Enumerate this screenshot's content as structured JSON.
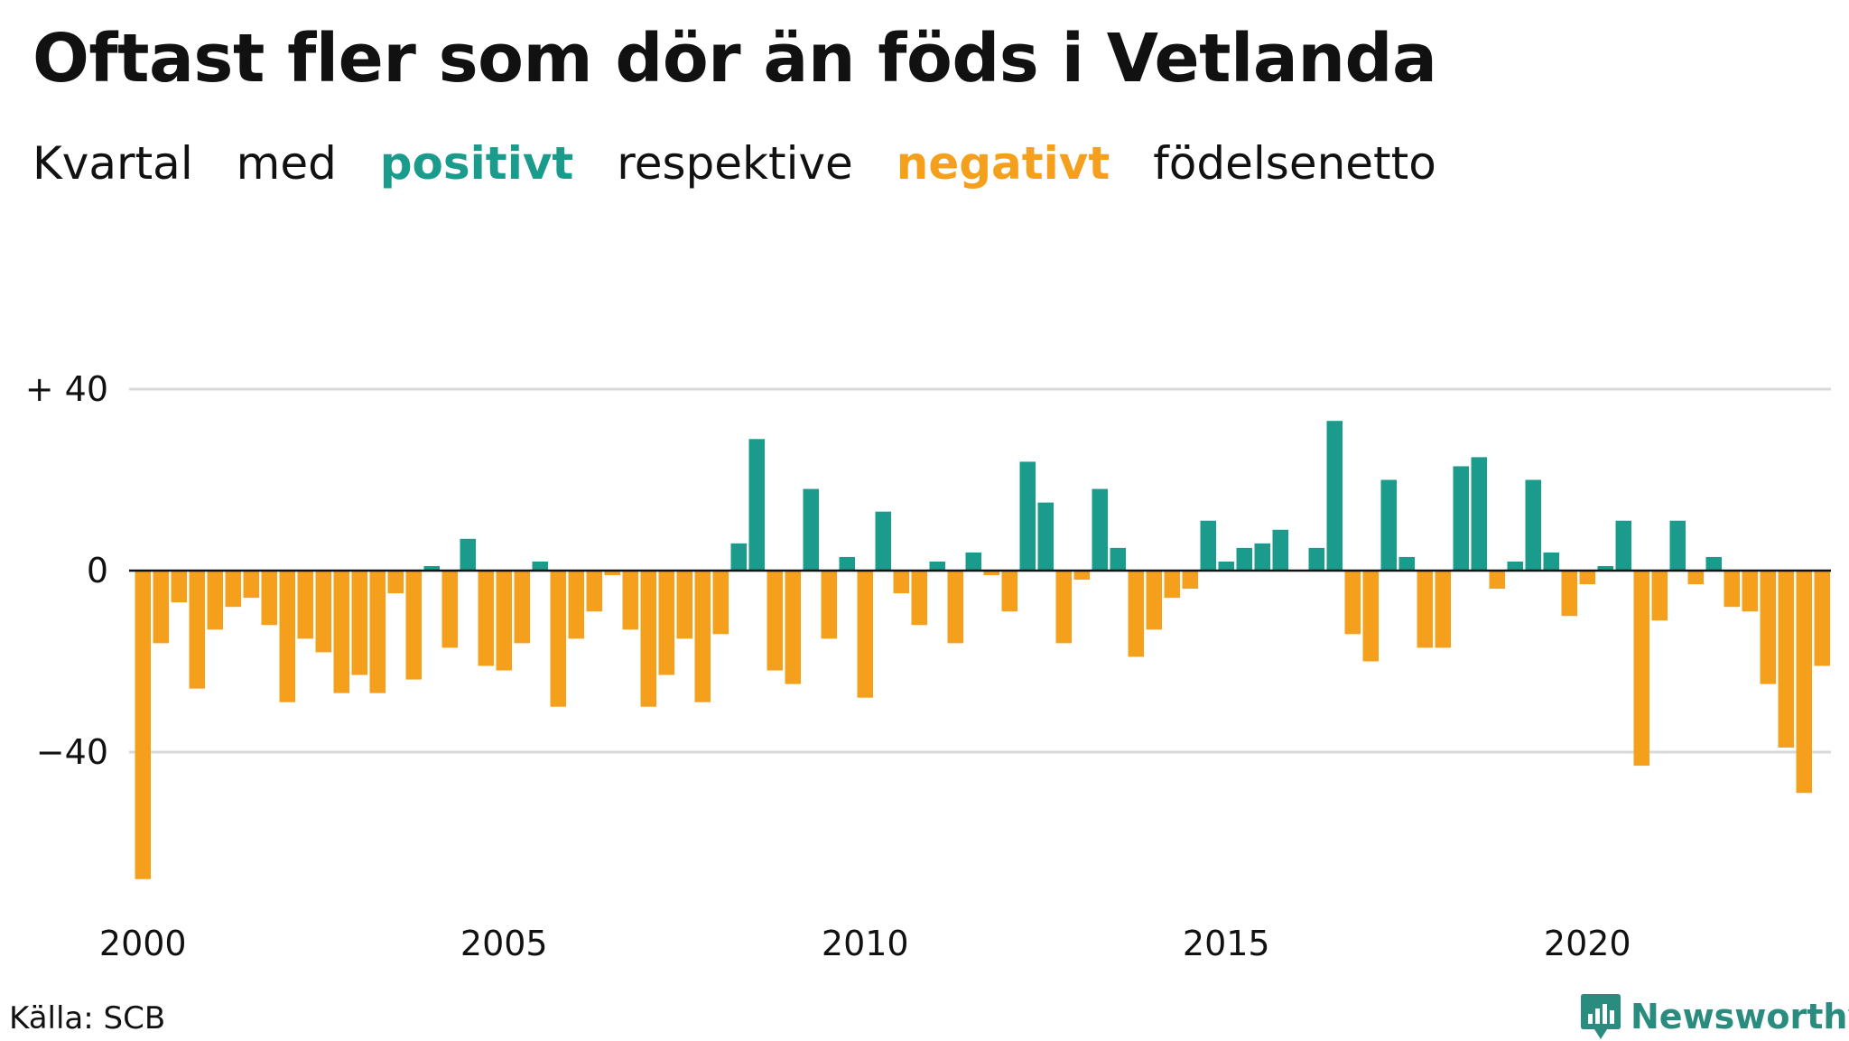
{
  "title": "Oftast fler som dör än föds i Vetlanda",
  "subtitle": {
    "word1": "Kvartal",
    "word2": "med",
    "positive_word": "positivt",
    "word3": "respektive",
    "negative_word": "negativt",
    "word4": "födelsenetto"
  },
  "colors": {
    "positive": "#1a9b8c",
    "negative": "#f5a01d",
    "grid": "#d9d9d9",
    "axis": "#111111",
    "logo_icon": "#2a8c7e",
    "logo_text": "#2a8c7e"
  },
  "source": "Källa: SCB",
  "logo": {
    "text": "Newsworthy",
    "icon": "bar-chart-logo-icon"
  },
  "chart_data": {
    "type": "bar",
    "title": "Oftast fler som dör än föds i Vetlanda",
    "xlabel": "",
    "ylabel": "",
    "ylim": [
      -72,
      50
    ],
    "yticks": [
      {
        "value": 40,
        "label": "+ 40"
      },
      {
        "value": 0,
        "label": "0"
      },
      {
        "value": -40,
        "label": "−40"
      }
    ],
    "xticks": [
      "2000",
      "2005",
      "2010",
      "2015",
      "2020"
    ],
    "grid": true,
    "legend": "none",
    "x_start": "2000 Q1",
    "frequency": "quarterly",
    "values": [
      -68,
      -16,
      -7,
      -26,
      -13,
      -8,
      -6,
      -12,
      -29,
      -15,
      -18,
      -27,
      -23,
      -27,
      -5,
      -24,
      1,
      -17,
      7,
      -21,
      -22,
      -16,
      2,
      -30,
      -15,
      -9,
      -1,
      -13,
      -30,
      -23,
      -15,
      -29,
      -14,
      6,
      29,
      -22,
      -25,
      18,
      -15,
      3,
      -28,
      13,
      -5,
      -12,
      2,
      -16,
      4,
      -1,
      -9,
      24,
      15,
      -16,
      -2,
      18,
      5,
      -19,
      -13,
      -6,
      -4,
      11,
      2,
      5,
      6,
      9,
      0,
      5,
      33,
      -14,
      -20,
      20,
      3,
      -17,
      -17,
      23,
      25,
      -4,
      2,
      20,
      4,
      -10,
      -3,
      1,
      11,
      -43,
      -11,
      11,
      -3,
      3,
      -8,
      -9,
      -25,
      -39,
      -49,
      -21
    ]
  }
}
